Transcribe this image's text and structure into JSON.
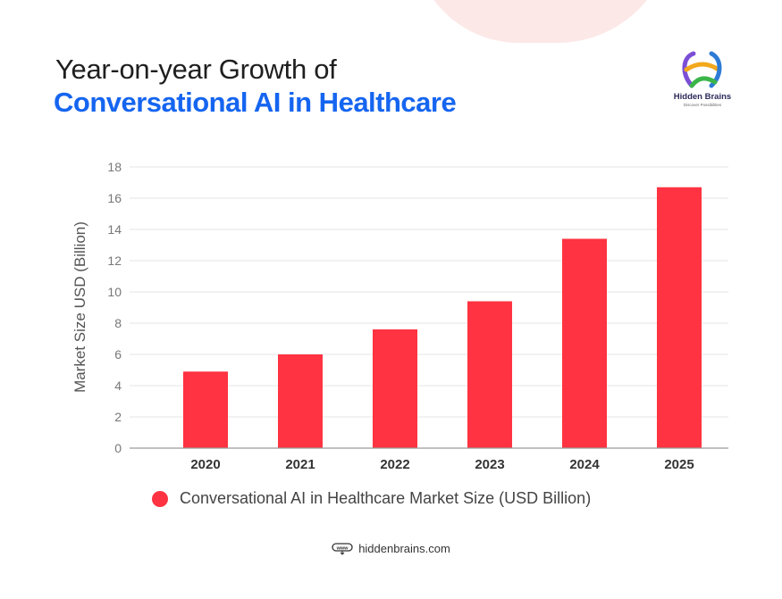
{
  "title": {
    "line1": "Year-on-year Growth of",
    "line2": "Conversational AI in Healthcare"
  },
  "logo": {
    "name": "Hidden Brains",
    "tagline": "Discover Possibilities"
  },
  "colors": {
    "title_accent": "#1565f0",
    "bar": "#ff3341"
  },
  "chart_data": {
    "type": "bar",
    "categories": [
      "2020",
      "2021",
      "2022",
      "2023",
      "2024",
      "2025"
    ],
    "values": [
      4.9,
      6.0,
      7.6,
      9.4,
      13.4,
      16.7
    ],
    "series_name": "Conversational AI in Healthcare Market Size (USD Billion)",
    "ylabel": "Market Size USD (Billion)",
    "xlabel": "",
    "ylim": [
      0,
      18
    ],
    "yticks": [
      "0",
      "2",
      "4",
      "6",
      "8",
      "10",
      "12",
      "14",
      "16",
      "18"
    ],
    "grid": true,
    "legend": "bottom"
  },
  "footer": {
    "icon": "www-icon",
    "website": "hiddenbrains.com"
  }
}
